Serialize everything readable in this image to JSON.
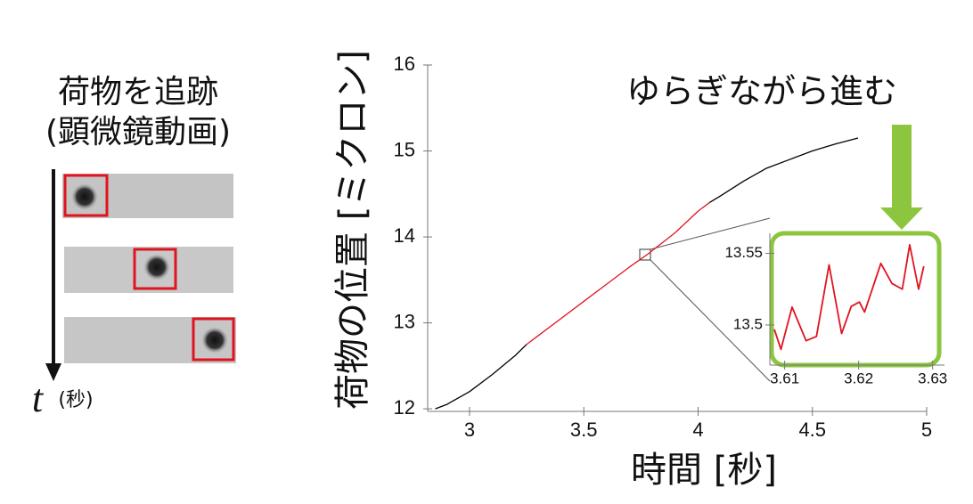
{
  "tracking": {
    "title": [
      "荷物を追跡",
      "(顕微鏡動画)"
    ],
    "time_symbol": "t",
    "time_unit": "(秒)"
  },
  "chart_data": [
    {
      "type": "line",
      "xlabel": "時間 [秒]",
      "ylabel": "荷物の位置 [ミクロン]",
      "annotation": "ゆらぎながら進む",
      "x": [
        2.85,
        2.9,
        3.0,
        3.1,
        3.2,
        3.25,
        3.3,
        3.4,
        3.5,
        3.6,
        3.7,
        3.78,
        3.9,
        4.0,
        4.05,
        4.1,
        4.2,
        4.3,
        4.4,
        4.5,
        4.6,
        4.7
      ],
      "series": [
        {
          "color": "#000000",
          "values": [
            12.0,
            12.05,
            12.2,
            12.4,
            12.62,
            12.75,
            null,
            null,
            null,
            null,
            null,
            null,
            null,
            null,
            14.4,
            14.48,
            14.65,
            14.8,
            14.9,
            15.0,
            15.08,
            15.15
          ]
        },
        {
          "color": "#e0141e",
          "values": [
            null,
            null,
            null,
            null,
            null,
            12.75,
            12.85,
            13.05,
            13.25,
            13.45,
            13.65,
            13.8,
            14.05,
            14.3,
            14.4,
            null,
            null,
            null,
            null,
            null,
            null,
            null
          ]
        }
      ],
      "xlim": [
        2.817,
        5
      ],
      "ylim": [
        11.97,
        16
      ],
      "xticks": [
        3,
        3.5,
        4,
        4.5,
        5
      ],
      "yticks": [
        12,
        13,
        14,
        15,
        16
      ]
    },
    {
      "type": "line",
      "x": [
        3.6086,
        3.6095,
        3.611,
        3.6129,
        3.6143,
        3.616,
        3.6177,
        3.619,
        3.6201,
        3.6208,
        3.623,
        3.6245,
        3.6259,
        3.6269,
        3.6281,
        3.6288
      ],
      "series": [
        {
          "color": "#e0141e",
          "values": [
            13.497,
            13.483,
            13.5125,
            13.489,
            13.492,
            13.542,
            13.494,
            13.513,
            13.516,
            13.509,
            13.543,
            13.529,
            13.525,
            13.556,
            13.525,
            13.541
          ]
        }
      ],
      "xlim": [
        3.608,
        3.6316
      ],
      "ylim": [
        13.472,
        13.564
      ],
      "xticks": [
        3.61,
        3.62,
        3.63
      ],
      "yticks": [
        13.5,
        13.55
      ]
    }
  ]
}
